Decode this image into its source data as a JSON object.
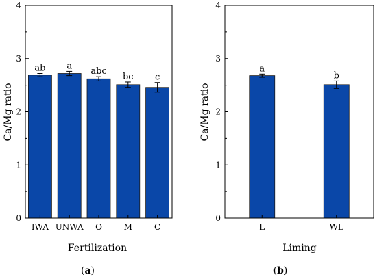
{
  "chart_data": [
    {
      "type": "bar",
      "panel_label": {
        "open": "(",
        "letter": "a",
        "close": ")"
      },
      "xlabel": "Fertilization",
      "ylabel": "Ca/Mg ratio",
      "ylim": [
        0,
        4
      ],
      "yticks": [
        "0",
        "1",
        "2",
        "3",
        "4"
      ],
      "categories": [
        "IWA",
        "UNWA",
        "O",
        "M",
        "C"
      ],
      "values": [
        2.69,
        2.72,
        2.62,
        2.51,
        2.46
      ],
      "errors": [
        0.03,
        0.04,
        0.04,
        0.05,
        0.09
      ],
      "labels": [
        "ab",
        "a",
        "abc",
        "bc",
        "c"
      ],
      "bar_color": "#0a47a8",
      "grid": false
    },
    {
      "type": "bar",
      "panel_label": {
        "open": "(",
        "letter": "b",
        "close": ")"
      },
      "xlabel": "Liming",
      "ylabel": "Ca/Mg ratio",
      "ylim": [
        0,
        4
      ],
      "yticks": [
        "0",
        "1",
        "2",
        "3",
        "4"
      ],
      "categories": [
        "L",
        "WL"
      ],
      "values": [
        2.68,
        2.51
      ],
      "errors": [
        0.03,
        0.07
      ],
      "labels": [
        "a",
        "b"
      ],
      "bar_color": "#0a47a8",
      "grid": false
    }
  ]
}
